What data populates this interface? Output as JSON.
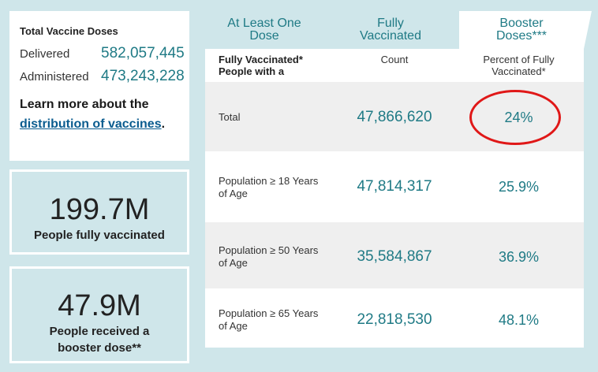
{
  "doses": {
    "title": "Total Vaccine Doses",
    "delivered_label": "Delivered",
    "delivered_value": "582,057,445",
    "administered_label": "Administered",
    "administered_value": "473,243,228",
    "learn_prefix": "Learn more about the",
    "learn_link": "distribution of vaccines",
    "learn_suffix": "."
  },
  "cards": [
    {
      "value": "199.7M",
      "caption": "People fully vaccinated"
    },
    {
      "value": "47.9M",
      "caption": "People received a booster dose**"
    }
  ],
  "tabs": [
    {
      "label": "At Least One Dose"
    },
    {
      "label": "Fully Vaccinated"
    },
    {
      "label": "Booster Doses***",
      "active": true
    }
  ],
  "table": {
    "headers": [
      "Fully Vaccinated* People with a",
      "Count",
      "Percent of Fully Vaccinated*"
    ],
    "rows": [
      {
        "label": "Total",
        "count": "47,866,620",
        "percent": "24%"
      },
      {
        "label": "Population ≥ 18 Years of Age",
        "count": "47,814,317",
        "percent": "25.9%"
      },
      {
        "label": "Population ≥ 50 Years of Age",
        "count": "35,584,867",
        "percent": "36.9%"
      },
      {
        "label": "Population ≥ 65 Years of Age",
        "count": "22,818,530",
        "percent": "48.1%"
      }
    ]
  },
  "colors": {
    "accent": "#1f7a85",
    "background": "#cfe6ea",
    "highlight": "#e01818"
  }
}
